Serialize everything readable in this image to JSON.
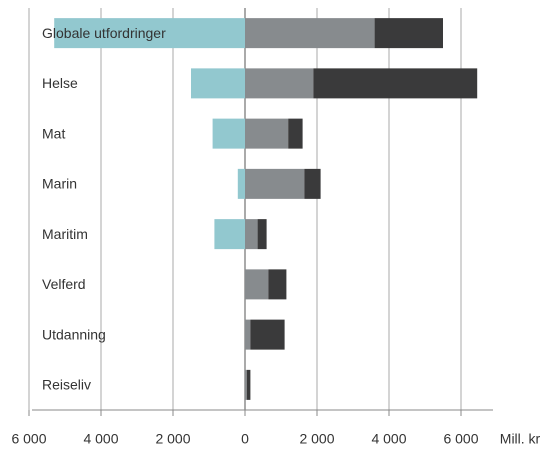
{
  "chart_data": {
    "type": "diverging_stacked_bar",
    "x_label": "Mill. kr",
    "categories": [
      "Globale utfordringer",
      "Helse",
      "Mat",
      "Marin",
      "Maritim",
      "Velferd",
      "Utdanning",
      "Reiseliv"
    ],
    "series": [
      {
        "color": "#92c8cf",
        "values": [
          -5300,
          -1500,
          -900,
          -200,
          -850,
          0,
          0,
          0
        ]
      },
      {
        "color": "#878b8e",
        "values": [
          3600,
          1900,
          1200,
          1650,
          350,
          650,
          150,
          50
        ]
      },
      {
        "color": "#3a3a3b",
        "values": [
          1900,
          4550,
          400,
          450,
          250,
          500,
          950,
          100
        ]
      }
    ],
    "xlim": [
      -6000,
      7000
    ],
    "xticks": [
      {
        "value": -6000,
        "label": "6 000"
      },
      {
        "value": -4000,
        "label": "4 000"
      },
      {
        "value": -2000,
        "label": "2 000"
      },
      0,
      {
        "value": 2000,
        "label": "2 000"
      },
      {
        "value": 4000,
        "label": "4 000"
      },
      {
        "value": 6000,
        "label": "6 000"
      }
    ],
    "grid": true
  }
}
